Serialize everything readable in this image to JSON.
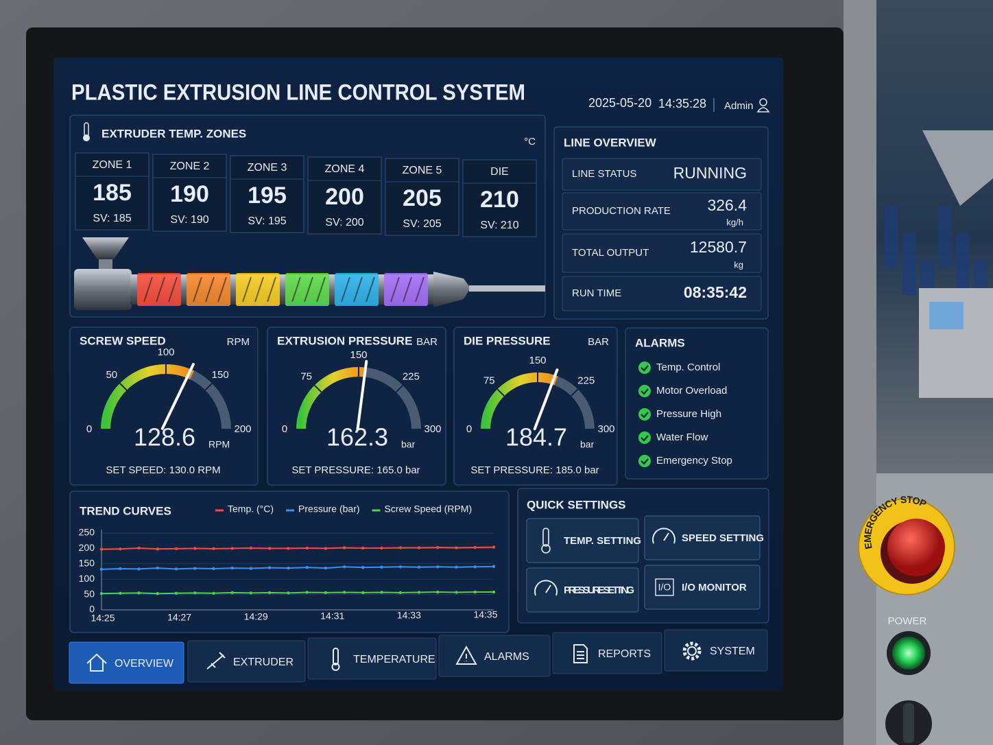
{
  "header": {
    "title": "PLASTIC EXTRUSION LINE CONTROL SYSTEM",
    "date": "2025-05-20",
    "time": "14:35:28",
    "user": "Admin"
  },
  "temp_zones": {
    "title": "EXTRUDER TEMP. ZONES",
    "unit": "°C",
    "zones": [
      {
        "name": "ZONE 1",
        "value": 185,
        "setpoint": "SV: 185",
        "color": "#ff4b3a"
      },
      {
        "name": "ZONE 2",
        "value": 190,
        "setpoint": "SV: 190",
        "color": "#ff8a2a"
      },
      {
        "name": "ZONE 3",
        "value": 195,
        "setpoint": "SV: 195",
        "color": "#ffd21f"
      },
      {
        "name": "ZONE 4",
        "value": 200,
        "setpoint": "SV: 200",
        "color": "#5fe04a"
      },
      {
        "name": "ZONE 5",
        "value": 205,
        "setpoint": "SV: 205",
        "color": "#2fb6f0"
      },
      {
        "name": "DIE",
        "value": 210,
        "setpoint": "SV: 210",
        "color": "#a970ff"
      }
    ]
  },
  "line_overview": {
    "title": "LINE OVERVIEW",
    "rows": [
      {
        "label": "LINE STATUS",
        "value": "RUNNING",
        "color": "#4fe04a"
      },
      {
        "label": "PRODUCTION RATE",
        "value": 326.4,
        "unit": "kg/h",
        "color": "#4fe04a"
      },
      {
        "label": "TOTAL OUTPUT",
        "value": 12580.7,
        "unit": "kg",
        "color": "#4fe04a"
      },
      {
        "label": "RUN TIME",
        "value": "08:35:42",
        "color": "#ffffff"
      }
    ]
  },
  "gauges": [
    {
      "title": "SCREW SPEED",
      "unit": "RPM",
      "range": [
        0,
        200
      ],
      "ticks": [
        0,
        50,
        100,
        150,
        200
      ],
      "value": 128.6,
      "value_unit": "RPM",
      "setpoint": "SET SPEED: 130.0  RPM"
    },
    {
      "title": "EXTRUSION PRESSURE",
      "unit": "BAR",
      "range": [
        0,
        300
      ],
      "ticks": [
        0,
        75,
        150,
        225,
        300
      ],
      "value": 162.3,
      "value_unit": "bar",
      "setpoint": "SET PRESSURE: 165.0  bar"
    },
    {
      "title": "DIE PRESSURE",
      "unit": "BAR",
      "range": [
        0,
        300
      ],
      "ticks": [
        0,
        75,
        150,
        225,
        300
      ],
      "value": 184.7,
      "value_unit": "bar",
      "setpoint": "SET PRESSURE: 185.0  bar"
    }
  ],
  "alarms": {
    "title": "ALARMS",
    "items": [
      "Temp. Control",
      "Motor Overload",
      "Pressure High",
      "Water Flow",
      "Emergency Stop"
    ]
  },
  "trend": {
    "title": "TREND CURVES",
    "ylim": [
      0,
      250
    ],
    "yticks": [
      0,
      50,
      100,
      150,
      200,
      250
    ],
    "x_labels": [
      "14:25",
      "14:27",
      "14:29",
      "14:31",
      "14:33",
      "14:35"
    ],
    "series": [
      {
        "name": "Temp. (°C)",
        "color": "#ff4a3a",
        "values": [
          197,
          198,
          201,
          198,
          199,
          200,
          199,
          200,
          201,
          200,
          200,
          201,
          200,
          202,
          201,
          201,
          202,
          202,
          203,
          202,
          203,
          204
        ]
      },
      {
        "name": "Pressure (bar)",
        "color": "#3b8ff0",
        "values": [
          132,
          134,
          133,
          136,
          133,
          135,
          134,
          136,
          135,
          137,
          136,
          138,
          136,
          140,
          138,
          139,
          140,
          139,
          140,
          139,
          140,
          141
        ]
      },
      {
        "name": "Screw Speed (RPM)",
        "color": "#4fd04a",
        "values": [
          53,
          54,
          55,
          53,
          54,
          55,
          54,
          56,
          55,
          56,
          55,
          57,
          56,
          57,
          56,
          57,
          56,
          57,
          58,
          57,
          58,
          58
        ]
      }
    ]
  },
  "quick_settings": {
    "title": "QUICK SETTINGS",
    "buttons": [
      "TEMP. SETTING",
      "SPEED SETTING",
      "PRESSURE SETTING",
      "I/O MONITOR"
    ],
    "io_icon": "I/O"
  },
  "nav": {
    "items": [
      "OVERVIEW",
      "EXTRUDER",
      "TEMPERATURE",
      "ALARMS",
      "REPORTS",
      "SYSTEM"
    ],
    "active": 0
  },
  "hardware": {
    "emergency_label": "EMERGENCY STOP",
    "power_label": "POWER"
  }
}
